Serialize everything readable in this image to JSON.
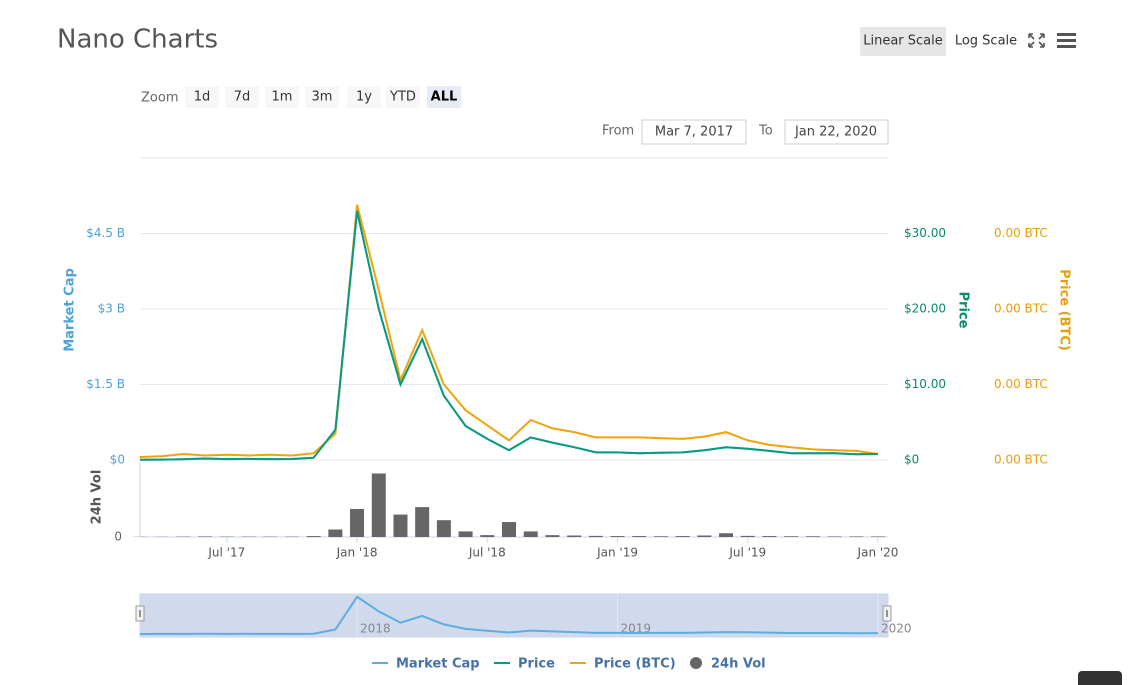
{
  "chart_data": {
    "type": "line",
    "title": "Nano Charts",
    "scale_buttons": [
      "Linear Scale",
      "Log Scale"
    ],
    "log_scale": false,
    "zoom_label": "Zoom",
    "zoom_buttons": [
      "1d",
      "7d",
      "1m",
      "3m",
      "1y",
      "YTD",
      "ALL"
    ],
    "active_zoom": "ALL",
    "from_label": "From",
    "from": "Mar 7, 2017",
    "to_label": "To",
    "to": "Jan 22, 2020",
    "x": [
      "2017-03",
      "2017-04",
      "2017-05",
      "2017-06",
      "2017-07",
      "2017-08",
      "2017-09",
      "2017-10",
      "2017-11",
      "2017-12",
      "2018-01",
      "2018-02",
      "2018-03",
      "2018-04",
      "2018-05",
      "2018-06",
      "2018-07",
      "2018-08",
      "2018-09",
      "2018-10",
      "2018-11",
      "2018-12",
      "2019-01",
      "2019-02",
      "2019-03",
      "2019-04",
      "2019-05",
      "2019-06",
      "2019-07",
      "2019-08",
      "2019-09",
      "2019-10",
      "2019-11",
      "2019-12",
      "2020-01"
    ],
    "xlim": [
      "2017-03",
      "2020-01"
    ],
    "xticks": [
      {
        "value": "2017-07",
        "label": "Jul '17"
      },
      {
        "value": "2018-01",
        "label": "Jan '18"
      },
      {
        "value": "2018-07",
        "label": "Jul '18"
      },
      {
        "value": "2019-01",
        "label": "Jan '19"
      },
      {
        "value": "2019-07",
        "label": "Jul '19"
      },
      {
        "value": "2020-01",
        "label": "Jan '20"
      }
    ],
    "navigator_xticks": [
      {
        "value": "2018-01",
        "label": "2018"
      },
      {
        "value": "2019-01",
        "label": "2019"
      },
      {
        "value": "2020-01",
        "label": "2020"
      }
    ],
    "ylim": [
      0,
      6000000000
    ],
    "yticks": [
      {
        "value": 0,
        "label": "$0"
      },
      {
        "value": 1500000000,
        "label": "$1.5 B"
      },
      {
        "value": 3000000000,
        "label": "$3 B"
      },
      {
        "value": 4500000000,
        "label": "$4.5 B"
      }
    ],
    "y2lim": [
      0,
      40
    ],
    "y2ticks": [
      {
        "value": 0,
        "label": "$0"
      },
      {
        "value": 10,
        "label": "$10.00"
      },
      {
        "value": 20,
        "label": "$20.00"
      },
      {
        "value": 30,
        "label": "$30.00"
      }
    ],
    "y3lim": [
      0,
      0.004
    ],
    "y3ticks": [
      {
        "value": 0,
        "label": "0.00 BTC"
      },
      {
        "value": 0.001,
        "label": "0.00 BTC"
      },
      {
        "value": 0.002,
        "label": "0.00 BTC"
      },
      {
        "value": 0.003,
        "label": "0.00 BTC"
      }
    ],
    "vol_ylim": [
      0,
      380000000
    ],
    "vol_yticks": [
      0
    ],
    "grid": true,
    "series": [
      {
        "name": "Market Cap",
        "color": "#5aaee0",
        "axis": "y",
        "values": [
          4500000,
          7500000,
          15000000,
          30000000,
          18000000,
          22500000,
          18000000,
          19500000,
          45000000,
          600000000,
          4950000000,
          3000000000,
          1500000000,
          2400000000,
          1275000000,
          675000000,
          420000000,
          195000000,
          450000000,
          345000000,
          255000000,
          150000000,
          150000000,
          135000000,
          142500000,
          150000000,
          195000000,
          255000000,
          225000000,
          180000000,
          135000000,
          135000000,
          135000000,
          112500000,
          120000000
        ]
      },
      {
        "name": "Price",
        "color": "#0a9b7e",
        "axis": "y2",
        "values": [
          0.03,
          0.05,
          0.1,
          0.2,
          0.12,
          0.15,
          0.12,
          0.13,
          0.3,
          4,
          33,
          20,
          10,
          16,
          8.5,
          4.5,
          2.8,
          1.3,
          3.0,
          2.3,
          1.7,
          1.0,
          1.0,
          0.9,
          0.95,
          1.0,
          1.3,
          1.7,
          1.5,
          1.2,
          0.9,
          0.9,
          0.9,
          0.75,
          0.8
        ]
      },
      {
        "name": "Price (BTC)",
        "color": "#f0a30a",
        "axis": "y3",
        "values": [
          4e-05,
          5e-05,
          8e-05,
          6e-05,
          7e-05,
          6e-05,
          7e-05,
          6e-05,
          9e-05,
          0.00035,
          0.00338,
          0.00225,
          0.00106,
          0.00172,
          0.001,
          0.00066,
          0.00046,
          0.00026,
          0.00053,
          0.00042,
          0.00037,
          0.0003,
          0.0003,
          0.0003,
          0.00029,
          0.00028,
          0.00031,
          0.00037,
          0.00026,
          0.0002,
          0.00017,
          0.00014,
          0.00013,
          0.00012,
          8e-05
        ]
      },
      {
        "name": "24h Vol",
        "color": "#666666",
        "axis": "vol",
        "type": "bar",
        "values": [
          1000000,
          1000000,
          2000000,
          3000000,
          2000000,
          2000000,
          2000000,
          2000000,
          5000000,
          40000000,
          150000000,
          340000000,
          120000000,
          160000000,
          90000000,
          30000000,
          10000000,
          80000000,
          30000000,
          10000000,
          8000000,
          6000000,
          5000000,
          5000000,
          4000000,
          5000000,
          8000000,
          20000000,
          6000000,
          5000000,
          4000000,
          4000000,
          3000000,
          3000000,
          3000000
        ]
      }
    ]
  }
}
